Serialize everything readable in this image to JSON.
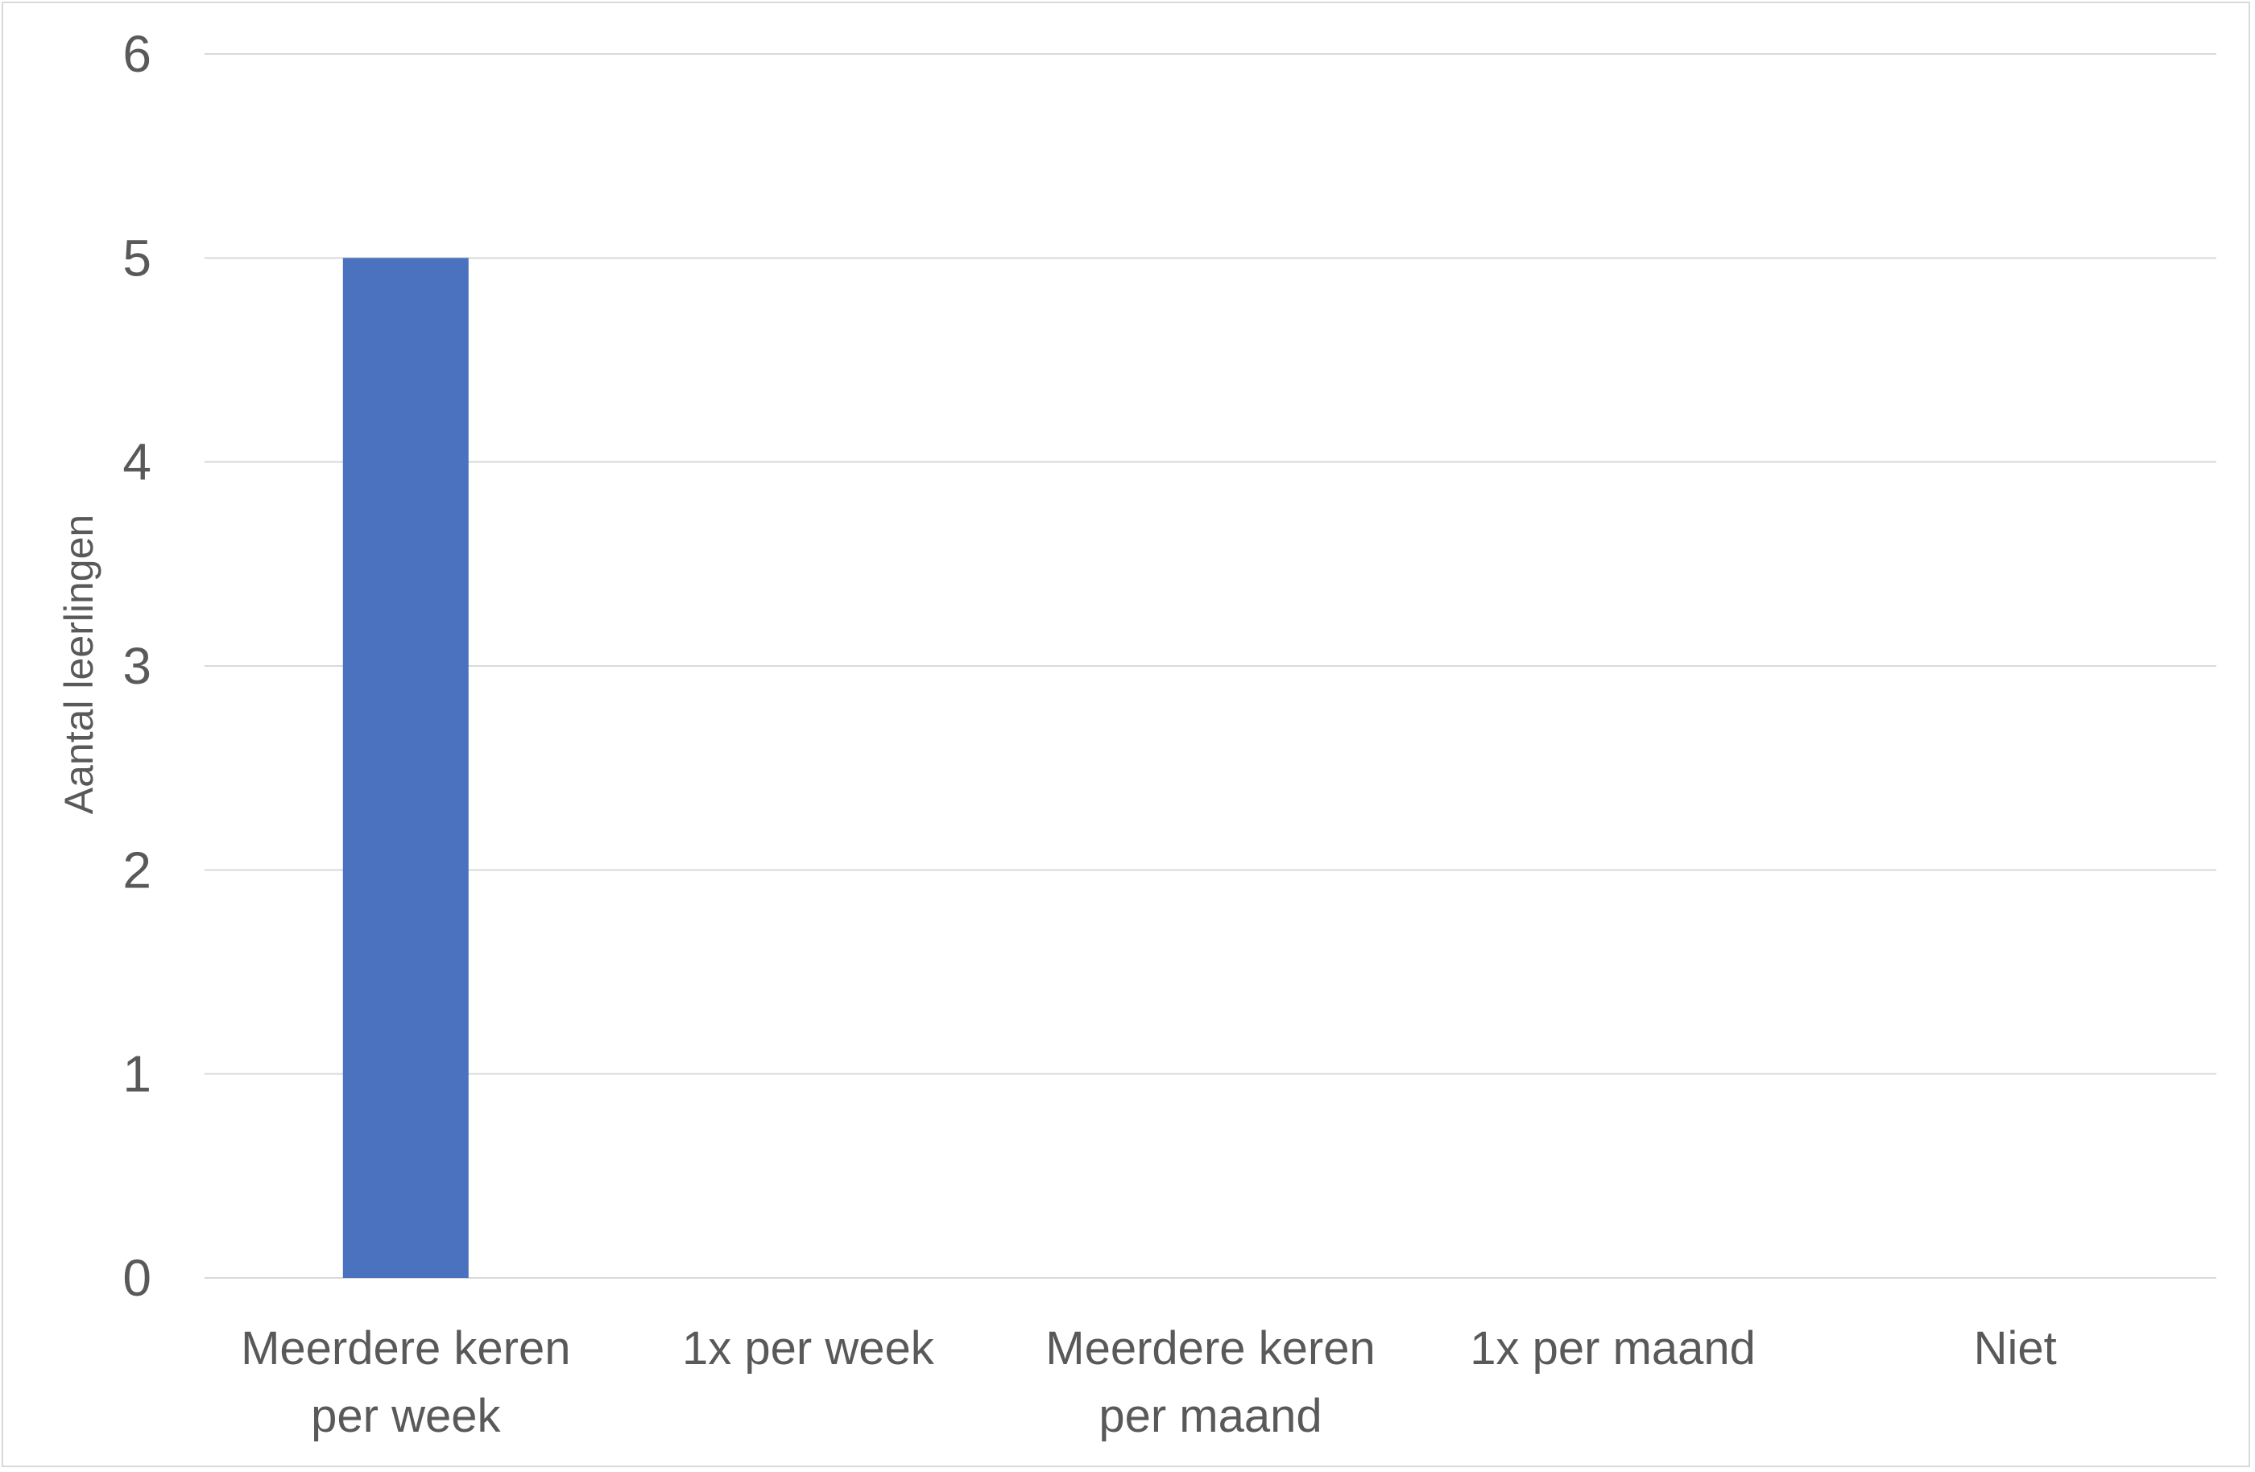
{
  "chart_data": {
    "type": "bar",
    "title": "",
    "xlabel": "",
    "ylabel": "Aantal leerlingen",
    "categories": [
      [
        "Meerdere keren",
        "per week"
      ],
      [
        "1x per week"
      ],
      [
        "Meerdere keren",
        "per maand"
      ],
      [
        "1x per maand"
      ],
      [
        "Niet"
      ]
    ],
    "values": [
      5,
      0,
      0,
      0,
      0
    ],
    "ylim": [
      0,
      6
    ],
    "yticks": [
      0,
      1,
      2,
      3,
      4,
      5,
      6
    ],
    "grid": true,
    "legend": "none"
  },
  "colors": {
    "bar": "#4A72BF",
    "gridline": "#d9d9d9",
    "text": "#595959"
  }
}
